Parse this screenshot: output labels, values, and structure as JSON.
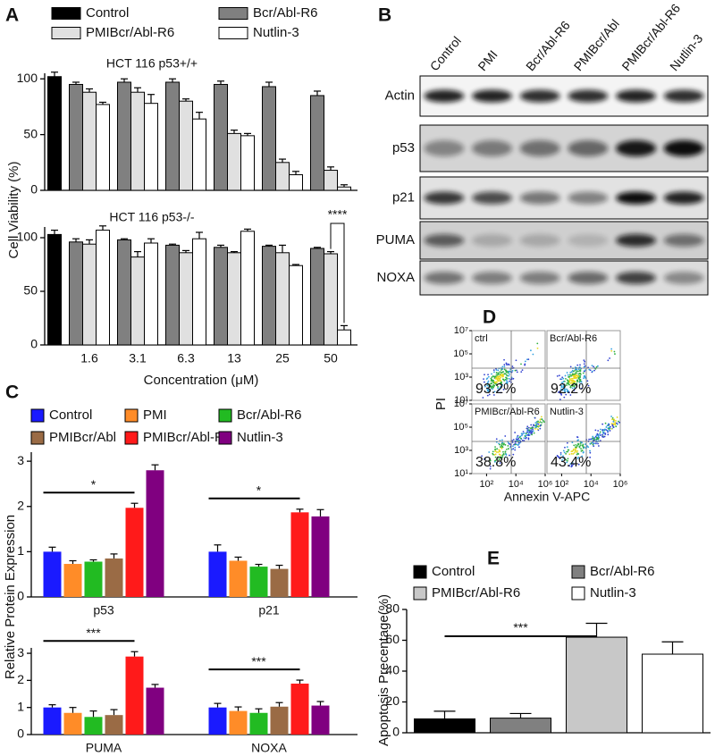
{
  "chart_data": [
    {
      "type": "grouped-bar",
      "label": "A",
      "ylabel": "Cell Viability (%)",
      "xlabel": "Concentration (μM)",
      "categories": [
        null,
        "1.6",
        "3.1",
        "6.3",
        "13",
        "25",
        "50"
      ],
      "series": [
        {
          "name": "Control",
          "color": "#000000"
        },
        {
          "name": "Bcr/Abl-R6",
          "color": "#808080"
        },
        {
          "name": "PMIBcr/Abl-R6",
          "color": "#e0e0e0"
        },
        {
          "name": "Nutlin-3",
          "color": "#ffffff"
        }
      ],
      "subplots": [
        {
          "title": "HCT 116 p53+/+",
          "ylim": [
            0,
            105
          ],
          "yticks": [
            0,
            50,
            100
          ],
          "series": [
            {
              "values": [
                102,
                null,
                null,
                null,
                null,
                null,
                null
              ],
              "errors": [
                4,
                null,
                null,
                null,
                null,
                null,
                null
              ]
            },
            {
              "values": [
                null,
                95,
                97,
                97,
                95,
                93,
                85
              ],
              "errors": [
                null,
                2,
                3,
                3,
                3,
                4,
                4
              ]
            },
            {
              "values": [
                null,
                88,
                88,
                80,
                51,
                25,
                18
              ],
              "errors": [
                null,
                3,
                4,
                2,
                3,
                3,
                3
              ]
            },
            {
              "values": [
                null,
                77,
                78,
                64,
                49,
                14,
                3
              ],
              "errors": [
                null,
                2,
                8,
                6,
                2,
                3,
                2
              ]
            }
          ]
        },
        {
          "title": "HCT 116 p53-/-",
          "ylim": [
            0,
            110
          ],
          "yticks": [
            0,
            50,
            100
          ],
          "annotation": "****",
          "series": [
            {
              "values": [
                103,
                null,
                null,
                null,
                null,
                null,
                null
              ],
              "errors": [
                4,
                null,
                null,
                null,
                null,
                null,
                null
              ]
            },
            {
              "values": [
                null,
                96,
                98,
                93,
                91,
                92,
                90
              ],
              "errors": [
                null,
                3,
                1,
                1,
                2,
                1,
                1
              ]
            },
            {
              "values": [
                null,
                94,
                82,
                86,
                86,
                86,
                85
              ],
              "errors": [
                null,
                4,
                5,
                2,
                1,
                7,
                2
              ]
            },
            {
              "values": [
                null,
                107,
                95,
                99,
                106,
                74,
                14
              ],
              "errors": [
                null,
                4,
                4,
                6,
                2,
                1,
                4
              ]
            }
          ]
        }
      ]
    },
    {
      "type": "grouped-bar",
      "label": "C",
      "ylabel": "Relative Protein Expression",
      "series": [
        {
          "name": "Control",
          "color": "#1a1aff"
        },
        {
          "name": "PMI",
          "color": "#ff8c28"
        },
        {
          "name": "Bcr/Abl-R6",
          "color": "#22bb22"
        },
        {
          "name": "PMIBcr/Abl",
          "color": "#9a6b45"
        },
        {
          "name": "PMIBcr/Abl-R6",
          "color": "#ff1a1a"
        },
        {
          "name": "Nutlin-3",
          "color": "#800080"
        }
      ],
      "subplots": [
        {
          "categories": [
            "p53",
            "p21"
          ],
          "ylim": [
            0,
            3.2
          ],
          "yticks": [
            0,
            1,
            2,
            3
          ],
          "annotations": [
            "*",
            "*"
          ],
          "series": [
            {
              "values": [
                1.0,
                1.0
              ],
              "errors": [
                0.1,
                0.15
              ]
            },
            {
              "values": [
                0.73,
                0.8
              ],
              "errors": [
                0.07,
                0.08
              ]
            },
            {
              "values": [
                0.78,
                0.67
              ],
              "errors": [
                0.04,
                0.05
              ]
            },
            {
              "values": [
                0.85,
                0.62
              ],
              "errors": [
                0.1,
                0.08
              ]
            },
            {
              "values": [
                1.97,
                1.87
              ],
              "errors": [
                0.1,
                0.07
              ]
            },
            {
              "values": [
                2.8,
                1.78
              ],
              "errors": [
                0.12,
                0.15
              ]
            }
          ]
        },
        {
          "categories": [
            "PUMA",
            "NOXA"
          ],
          "ylim": [
            0,
            3.2
          ],
          "yticks": [
            0,
            1,
            2,
            3
          ],
          "annotations": [
            "***",
            "***"
          ],
          "series": [
            {
              "values": [
                1.0,
                1.0
              ],
              "errors": [
                0.1,
                0.15
              ]
            },
            {
              "values": [
                0.8,
                0.87
              ],
              "errors": [
                0.2,
                0.15
              ]
            },
            {
              "values": [
                0.65,
                0.8
              ],
              "errors": [
                0.22,
                0.15
              ]
            },
            {
              "values": [
                0.72,
                1.03
              ],
              "errors": [
                0.2,
                0.15
              ]
            },
            {
              "values": [
                2.88,
                1.88
              ],
              "errors": [
                0.18,
                0.13
              ]
            },
            {
              "values": [
                1.73,
                1.07
              ],
              "errors": [
                0.12,
                0.15
              ]
            }
          ]
        }
      ]
    },
    {
      "type": "flow-cytometry",
      "label": "D",
      "xlabel": "Annexin V-APC",
      "ylabel": "PI",
      "log_scale": true,
      "xlim": [
        10,
        1000000
      ],
      "xticks": [
        {
          "value": 100,
          "label": "10²"
        },
        {
          "value": 10000,
          "label": "10⁴"
        },
        {
          "value": 1000000,
          "label": "10⁶"
        }
      ],
      "ylim": [
        10,
        10000000
      ],
      "yticks": [
        {
          "value": 10,
          "label": "10¹"
        },
        {
          "value": 1000,
          "label": "10³"
        },
        {
          "value": 100000,
          "label": "10⁵"
        },
        {
          "value": 10000000,
          "label": "10⁷"
        }
      ],
      "categories": [
        "ctrl",
        "Bcr/Abl-R6",
        "PMIBcr/Abl-R6",
        "Nutlin-3"
      ],
      "values": [
        93.2,
        92.2,
        38.8,
        43.4
      ],
      "value_labels": [
        "93.2%",
        "92.2%",
        "38.8%",
        "43.4%"
      ]
    },
    {
      "type": "bar",
      "label": "E",
      "ylabel": "Apoptosis Precentage(%)",
      "ylim": [
        0,
        80
      ],
      "yticks": [
        0,
        20,
        40,
        60,
        80
      ],
      "annotation": "***",
      "series": [
        {
          "name": "Control",
          "color": "#000000",
          "values": [
            9
          ],
          "errors": [
            5
          ]
        },
        {
          "name": "Bcr/Abl-R6",
          "color": "#808080",
          "values": [
            9.5
          ],
          "errors": [
            3
          ]
        },
        {
          "name": "PMIBcr/Abl-R6",
          "color": "#c8c8c8",
          "values": [
            62
          ],
          "errors": [
            9
          ]
        },
        {
          "name": "Nutlin-3",
          "color": "#ffffff",
          "values": [
            51
          ],
          "errors": [
            8
          ]
        }
      ]
    }
  ],
  "blot": {
    "label": "B",
    "lanes": [
      "Control",
      "PMI",
      "Bcr/Abl-R6",
      "PMIBcr/Abl",
      "PMIBcr/Abl-R6",
      "Nutlin-3"
    ],
    "rows": [
      "Actin",
      "p53",
      "p21",
      "PUMA",
      "NOXA"
    ]
  }
}
